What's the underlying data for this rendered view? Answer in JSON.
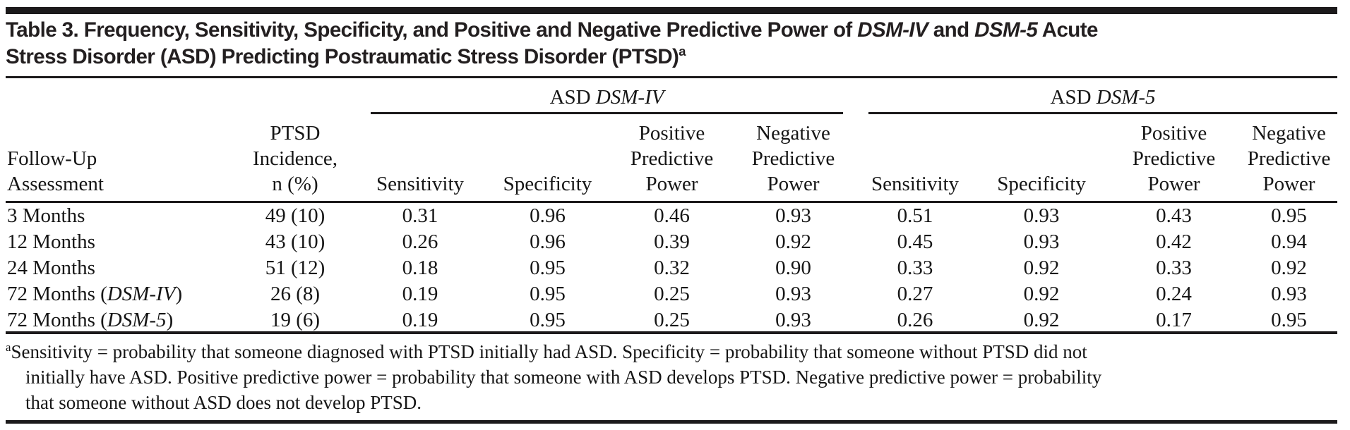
{
  "title": {
    "line1": [
      {
        "t": "Table 3. Frequency, Sensitivity, Specificity, and Positive and Negative Predictive Power of "
      },
      {
        "t": "DSM-IV",
        "i": true
      },
      {
        "t": " and "
      },
      {
        "t": "DSM-5",
        "i": true
      },
      {
        "t": " Acute"
      }
    ],
    "line2": [
      {
        "t": "Stress Disorder (ASD) Predicting Postraumatic Stress Disorder (PTSD)"
      },
      {
        "t": "a",
        "s": true
      }
    ]
  },
  "table": {
    "groups": [
      {
        "label": [
          {
            "t": "ASD "
          },
          {
            "t": "DSM-IV",
            "i": true
          }
        ]
      },
      {
        "label": [
          {
            "t": "ASD "
          },
          {
            "t": "DSM-5",
            "i": true
          }
        ]
      }
    ],
    "columns": {
      "follow_up": "Follow-Up\nAssessment",
      "incidence": "PTSD\nIncidence,\nn (%)",
      "sensitivity": "Sensitivity",
      "specificity": "Specificity",
      "ppp": "Positive\nPredictive\nPower",
      "npp": "Negative\nPredictive\nPower"
    },
    "rows": [
      {
        "label": [
          {
            "t": "3 Months"
          }
        ],
        "incidence": "49 (10)",
        "dsm4": [
          "0.31",
          "0.96",
          "0.46",
          "0.93"
        ],
        "dsm5": [
          "0.51",
          "0.93",
          "0.43",
          "0.95"
        ]
      },
      {
        "label": [
          {
            "t": "12 Months"
          }
        ],
        "incidence": "43 (10)",
        "dsm4": [
          "0.26",
          "0.96",
          "0.39",
          "0.92"
        ],
        "dsm5": [
          "0.45",
          "0.93",
          "0.42",
          "0.94"
        ]
      },
      {
        "label": [
          {
            "t": "24 Months"
          }
        ],
        "incidence": "51 (12)",
        "dsm4": [
          "0.18",
          "0.95",
          "0.32",
          "0.90"
        ],
        "dsm5": [
          "0.33",
          "0.92",
          "0.33",
          "0.92"
        ]
      },
      {
        "label": [
          {
            "t": "72 Months ("
          },
          {
            "t": "DSM-IV",
            "i": true
          },
          {
            "t": ")"
          }
        ],
        "incidence": "26 (8)",
        "dsm4": [
          "0.19",
          "0.95",
          "0.25",
          "0.93"
        ],
        "dsm5": [
          "0.27",
          "0.92",
          "0.24",
          "0.93"
        ]
      },
      {
        "label": [
          {
            "t": "72 Months ("
          },
          {
            "t": "DSM-5",
            "i": true
          },
          {
            "t": ")"
          }
        ],
        "incidence": "19 (6)",
        "dsm4": [
          "0.19",
          "0.95",
          "0.25",
          "0.93"
        ],
        "dsm5": [
          "0.26",
          "0.92",
          "0.17",
          "0.95"
        ]
      }
    ]
  },
  "footnote": {
    "marker": "a",
    "lines": [
      "Sensitivity = probability that someone diagnosed with PTSD initially had ASD. Specificity = probability that someone without PTSD did not",
      "initially have ASD. Positive predictive power = probability that someone with ASD develops PTSD. Negative predictive power = probability",
      "that someone without ASD does not develop PTSD."
    ]
  },
  "colors": {
    "background": "#ffffff",
    "text": "#161616",
    "title_text": "#231f20",
    "rule": "#1c1a1b"
  }
}
